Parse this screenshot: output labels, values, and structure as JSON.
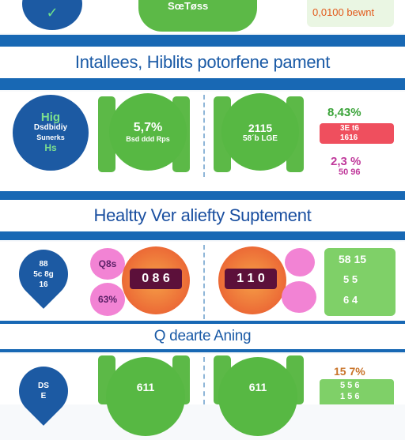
{
  "colors": {
    "blue": "#1868b4",
    "green": "#5cb947",
    "light_green": "#7fd068",
    "red": "#ef4f5e",
    "pink": "#f283d4",
    "orange": "#ec6a36",
    "dark_plum": "#5c103a"
  },
  "top_strip": {
    "circle_text": "✓",
    "center_text": "SœTøss",
    "right_text": "0,0100 bewnt"
  },
  "headings": {
    "h1": "Intallees, Hiblits potorfene pament",
    "h2": "Healtty Ver aliefty Suptement",
    "h3": "Q dearte Aning"
  },
  "row1": {
    "blue_circle": {
      "line1": "Hig",
      "line2": "Dsdbidiy",
      "line3": "Sunerks",
      "line4": "Hs"
    },
    "left_green": {
      "line1": "5,7%",
      "line2": "Bsd ddd Rps"
    },
    "right_green": {
      "line1": "2115",
      "line2": "58´b LGE"
    },
    "stats": {
      "top": "8,43%",
      "red_line1": "3E t6",
      "red_line2": "1616",
      "bottom": "2,3 %",
      "bottom2": "50 96"
    }
  },
  "row2": {
    "drop": {
      "line1": "88",
      "line2": "5c 8g",
      "line3": "16"
    },
    "pink_a": "Q8s",
    "pink_b": "63%",
    "orange_left": "0 8 6",
    "orange_right": "1 1 0",
    "pink_c": "",
    "pink_d": "",
    "stats": {
      "l1": "58 15",
      "l2": "5 5",
      "l3": "6 4"
    }
  },
  "row3": {
    "drop": {
      "line1": "DS",
      "line2": "E"
    },
    "left_green": "611",
    "right_green": "611",
    "stats": {
      "top": "15 7%",
      "l1": "5 5 6",
      "l2": "1 5 6"
    }
  }
}
